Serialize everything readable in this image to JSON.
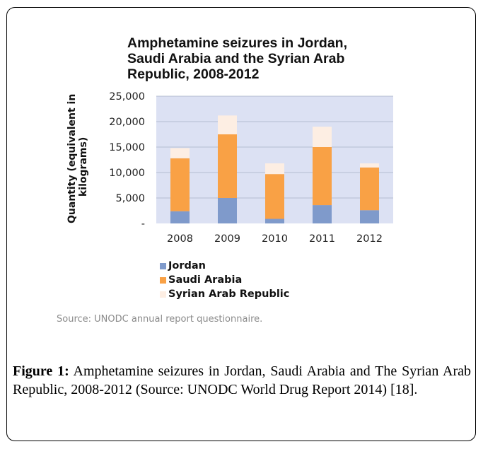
{
  "chart_data": {
    "type": "bar",
    "stacked": true,
    "title": "Amphetamine seizures in Jordan, Saudi Arabia and the Syrian Arab Republic, 2008-2012",
    "title_lines": [
      "Amphetamine seizures in Jordan,",
      "Saudi Arabia and the Syrian Arab",
      "Republic, 2008-2012"
    ],
    "ylabel": "Quantity  (equivalent in kilograms)",
    "ylabel_lines": [
      "Quantity  (equivalent in",
      "kilograms)"
    ],
    "xlabel": "",
    "categories": [
      "2008",
      "2009",
      "2010",
      "2011",
      "2012"
    ],
    "yticks": [
      "-",
      "5,000",
      "10,000",
      "15,000",
      "20,000",
      "25,000"
    ],
    "ylim": [
      0,
      25000
    ],
    "grid": true,
    "legend_position": "bottom",
    "series": [
      {
        "name": "Jordan",
        "values": [
          2400,
          5000,
          900,
          3600,
          2600
        ]
      },
      {
        "name": "Saudi Arabia",
        "values": [
          10400,
          12500,
          8800,
          11400,
          8400
        ]
      },
      {
        "name": "Syrian Arab Republic",
        "values": [
          2000,
          3700,
          2100,
          4000,
          800
        ]
      }
    ],
    "colors": {
      "plot_background": "#dce1f3",
      "gridline": "#a9b0c4",
      "series": [
        "#7f9acb",
        "#f9a145",
        "#fdeee3"
      ]
    }
  },
  "source_note": "Source: UNODC annual report questionnaire.",
  "caption": {
    "lead": "Figure 1:",
    "text": " Amphetamine seizures in Jordan, Saudi Arabia and The Syrian Arab Republic, 2008-2012 (Source: UNODC World Drug Report 2014) [18]."
  }
}
